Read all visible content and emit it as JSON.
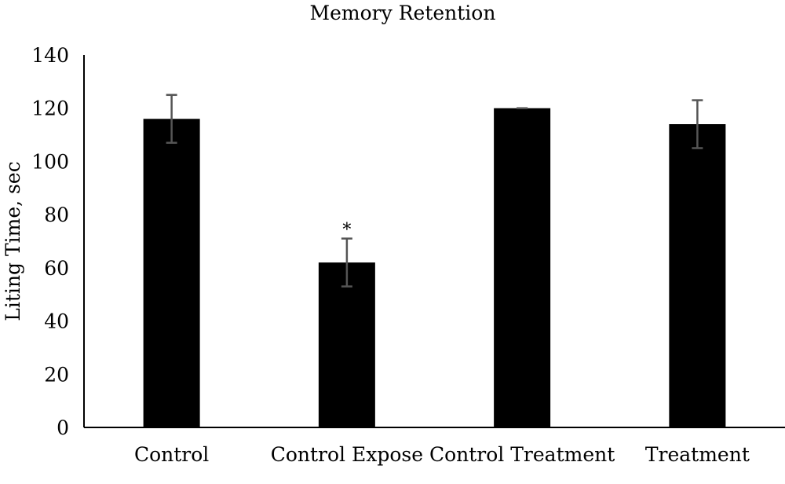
{
  "chart_data": {
    "type": "bar",
    "title": "Memory Retention",
    "xlabel": "",
    "ylabel": "Liting Time, sec",
    "ylim": [
      0,
      140
    ],
    "yticks": [
      0,
      20,
      40,
      60,
      80,
      100,
      120,
      140
    ],
    "categories": [
      "Control",
      "Control Expose",
      "Control Treatment",
      "Treatment"
    ],
    "values": [
      116,
      62,
      120,
      114
    ],
    "errors": [
      9,
      9,
      0,
      9
    ],
    "annotations": [
      "",
      "*",
      "",
      ""
    ],
    "grid": false,
    "legend": "none",
    "colors": {
      "bar": "#000000",
      "error_bar": "#555555",
      "axis": "#000000"
    }
  }
}
